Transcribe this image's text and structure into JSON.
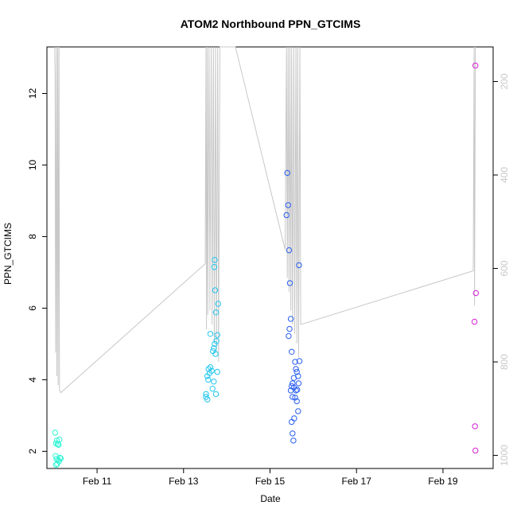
{
  "chart_data": {
    "type": "scatter",
    "title": "ATOM2 Northbound PPN_GTCIMS",
    "xlabel": "Date",
    "ylabel": "PPN_GTCIMS",
    "x_ticks": [
      {
        "label": "Feb 11",
        "value": 11.0
      },
      {
        "label": "Feb 13",
        "value": 13.0
      },
      {
        "label": "Feb 15",
        "value": 15.0
      },
      {
        "label": "Feb 17",
        "value": 17.0
      },
      {
        "label": "Feb 19",
        "value": 19.0
      }
    ],
    "xlim": [
      9.84,
      20.16
    ],
    "ylim": [
      1.52,
      13.3
    ],
    "y_ticks": [
      2,
      4,
      6,
      8,
      10,
      12
    ],
    "y2_ticks": [
      200,
      400,
      600,
      800,
      1000
    ],
    "y2lim": [
      1028,
      126
    ],
    "y2_inverted": true,
    "grid": false,
    "point_shape": "open-circle",
    "series": [
      {
        "color": "#2ef5d6",
        "points": [
          [
            10.03,
            2.52
          ],
          [
            10.05,
            2.22
          ],
          [
            10.07,
            2.3
          ],
          [
            10.09,
            2.2
          ],
          [
            10.11,
            2.18
          ],
          [
            10.13,
            2.33
          ],
          [
            10.04,
            1.87
          ],
          [
            10.06,
            1.79
          ],
          [
            10.08,
            1.65
          ],
          [
            10.1,
            1.76
          ],
          [
            10.12,
            1.72
          ],
          [
            10.14,
            1.82
          ],
          [
            10.16,
            1.8
          ],
          [
            10.05,
            1.62
          ]
        ]
      },
      {
        "color": "#22c6ee",
        "points": [
          [
            13.52,
            3.52
          ],
          [
            13.55,
            4.1
          ],
          [
            13.58,
            4.3
          ],
          [
            13.62,
            4.35
          ],
          [
            13.65,
            4.25
          ],
          [
            13.68,
            4.8
          ],
          [
            13.7,
            4.88
          ],
          [
            13.72,
            5.0
          ],
          [
            13.74,
            4.72
          ],
          [
            13.76,
            5.08
          ],
          [
            13.78,
            5.25
          ],
          [
            13.62,
            5.28
          ],
          [
            13.71,
            7.15
          ],
          [
            13.73,
            6.5
          ],
          [
            13.75,
            5.88
          ],
          [
            13.8,
            6.12
          ],
          [
            13.72,
            7.35
          ],
          [
            13.67,
            3.75
          ],
          [
            13.7,
            3.95
          ],
          [
            13.75,
            3.6
          ],
          [
            13.78,
            4.22
          ],
          [
            13.55,
            3.45
          ],
          [
            13.52,
            3.6
          ],
          [
            13.57,
            4.0
          ],
          [
            13.6,
            4.18
          ]
        ]
      },
      {
        "color": "#2a5ff0",
        "points": [
          [
            15.4,
            9.78
          ],
          [
            15.42,
            8.88
          ],
          [
            15.38,
            8.6
          ],
          [
            15.44,
            7.62
          ],
          [
            15.46,
            6.7
          ],
          [
            15.48,
            5.7
          ],
          [
            15.43,
            5.22
          ],
          [
            15.45,
            5.42
          ],
          [
            15.5,
            4.78
          ],
          [
            15.58,
            4.5
          ],
          [
            15.6,
            4.3
          ],
          [
            15.62,
            4.22
          ],
          [
            15.65,
            4.1
          ],
          [
            15.68,
            4.52
          ],
          [
            15.55,
            4.05
          ],
          [
            15.52,
            3.9
          ],
          [
            15.5,
            3.82
          ],
          [
            15.48,
            3.7
          ],
          [
            15.55,
            3.78
          ],
          [
            15.6,
            3.7
          ],
          [
            15.63,
            3.72
          ],
          [
            15.66,
            3.9
          ],
          [
            15.52,
            3.52
          ],
          [
            15.58,
            3.5
          ],
          [
            15.62,
            3.4
          ],
          [
            15.65,
            3.12
          ],
          [
            15.56,
            2.92
          ],
          [
            15.5,
            2.82
          ],
          [
            15.52,
            2.5
          ],
          [
            15.54,
            2.3
          ],
          [
            15.67,
            7.2
          ]
        ]
      },
      {
        "color": "#d622d6",
        "points": [
          [
            19.75,
            12.78
          ],
          [
            19.76,
            6.42
          ],
          [
            19.73,
            5.62
          ],
          [
            19.74,
            2.7
          ],
          [
            19.75,
            2.02
          ]
        ]
      }
    ],
    "line_series": {
      "color": "#c8c8c8",
      "axis": "right",
      "points": [
        [
          10.02,
          126
        ],
        [
          10.03,
          195
        ],
        [
          10.04,
          780
        ],
        [
          10.06,
          126
        ],
        [
          10.07,
          830
        ],
        [
          10.09,
          126
        ],
        [
          10.1,
          850
        ],
        [
          10.12,
          126
        ],
        [
          10.13,
          860
        ],
        [
          10.16,
          866
        ],
        [
          13.5,
          590
        ],
        [
          13.52,
          126
        ],
        [
          13.53,
          730
        ],
        [
          13.55,
          126
        ],
        [
          13.56,
          700
        ],
        [
          13.59,
          126
        ],
        [
          13.61,
          690
        ],
        [
          13.64,
          126
        ],
        [
          13.66,
          720
        ],
        [
          13.69,
          126
        ],
        [
          13.71,
          760
        ],
        [
          13.74,
          126
        ],
        [
          13.76,
          780
        ],
        [
          13.79,
          126
        ],
        [
          13.81,
          800
        ],
        [
          13.84,
          126
        ],
        [
          14.2,
          126
        ],
        [
          15.35,
          560
        ],
        [
          15.38,
          126
        ],
        [
          15.4,
          620
        ],
        [
          15.42,
          126
        ],
        [
          15.44,
          650
        ],
        [
          15.46,
          126
        ],
        [
          15.48,
          690
        ],
        [
          15.5,
          126
        ],
        [
          15.52,
          720
        ],
        [
          15.55,
          126
        ],
        [
          15.57,
          740
        ],
        [
          15.6,
          126
        ],
        [
          15.62,
          760
        ],
        [
          15.64,
          126
        ],
        [
          15.66,
          790
        ],
        [
          15.69,
          126
        ],
        [
          15.71,
          720
        ],
        [
          19.7,
          605
        ],
        [
          19.72,
          126
        ],
        [
          19.73,
          680
        ],
        [
          19.75,
          126
        ]
      ]
    }
  }
}
